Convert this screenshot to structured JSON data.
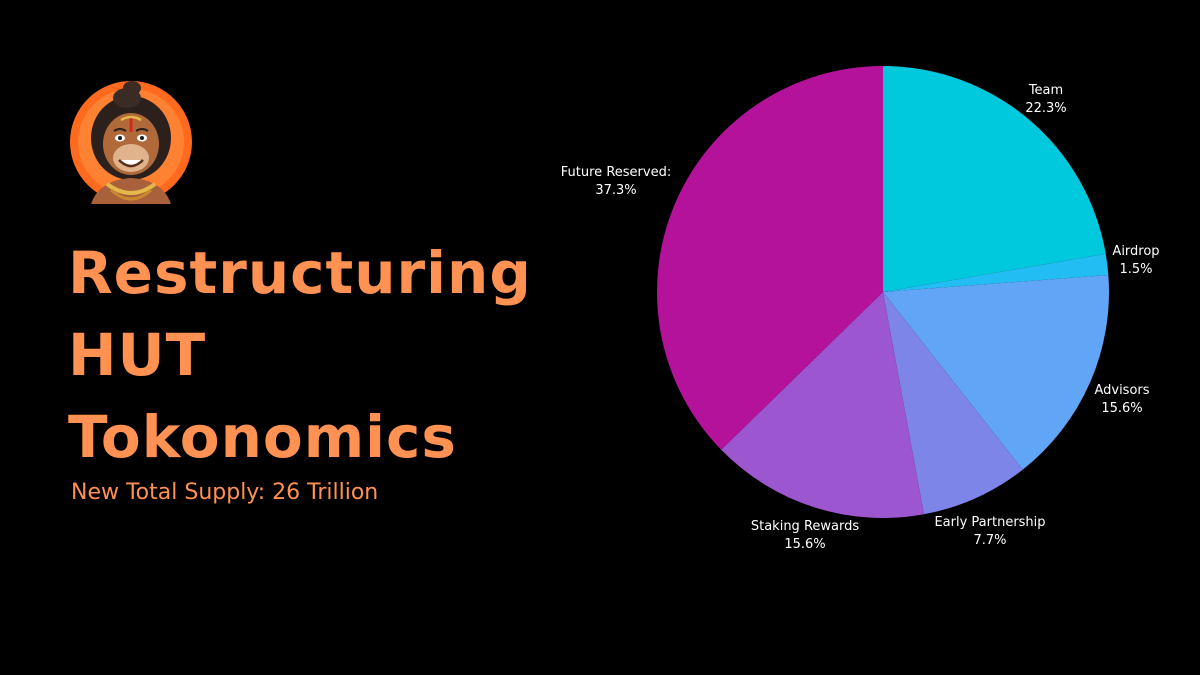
{
  "header": {
    "title_lines": [
      "Restructuring",
      "HUT",
      "Tokonomics"
    ],
    "subtitle": "New Total Supply: 26 Trillion"
  },
  "avatar": {
    "icon": "hanuman-mascot-icon",
    "ring_color": "#FF6A1F"
  },
  "colors": {
    "accent": "#FF9153",
    "background": "#000000"
  },
  "chart_data": {
    "type": "pie",
    "start": "12 o'clock",
    "direction": "clockwise",
    "slices": [
      {
        "label": "Team",
        "value_label": "22.3%",
        "value": 22.3,
        "color": "#00C9DE"
      },
      {
        "label": "Airdrop",
        "value_label": "1.5%",
        "value": 1.5,
        "color": "#22BEF3"
      },
      {
        "label": "Advisors",
        "value_label": "15.6%",
        "value": 15.6,
        "color": "#61A5F7"
      },
      {
        "label": "Early Partnership",
        "value_label": "7.7%",
        "value": 7.7,
        "color": "#7E85E8"
      },
      {
        "label": "Staking Rewards",
        "value_label": "15.6%",
        "value": 15.6,
        "color": "#9C56D0"
      },
      {
        "label": "Future Reserved:",
        "value_label": "37.3%",
        "value": 37.3,
        "color": "#B5129C"
      }
    ]
  }
}
